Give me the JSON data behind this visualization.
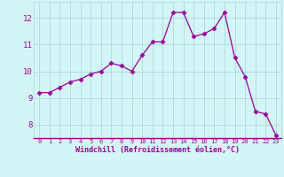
{
  "x": [
    0,
    1,
    2,
    3,
    4,
    5,
    6,
    7,
    8,
    9,
    10,
    11,
    12,
    13,
    14,
    15,
    16,
    17,
    18,
    19,
    20,
    21,
    22,
    23
  ],
  "y": [
    9.2,
    9.2,
    9.4,
    9.6,
    9.7,
    9.9,
    10.0,
    10.3,
    10.2,
    10.0,
    10.6,
    11.1,
    11.1,
    12.2,
    12.2,
    11.3,
    11.4,
    11.6,
    12.2,
    10.5,
    9.8,
    8.5,
    8.4,
    7.6
  ],
  "line_color": "#990099",
  "marker": "D",
  "marker_size": 2.5,
  "background_color": "#d4f5f5",
  "grid_color": "#aadddd",
  "xlabel": "Windchill (Refroidissement éolien,°C)",
  "xlabel_color": "#990099",
  "tick_color": "#990099",
  "ylim": [
    7.5,
    12.6
  ],
  "yticks": [
    8,
    9,
    10,
    11,
    12
  ],
  "xlim": [
    -0.5,
    23.5
  ],
  "xticks": [
    0,
    1,
    2,
    3,
    4,
    5,
    6,
    7,
    8,
    9,
    10,
    11,
    12,
    13,
    14,
    15,
    16,
    17,
    18,
    19,
    20,
    21,
    22,
    23
  ]
}
